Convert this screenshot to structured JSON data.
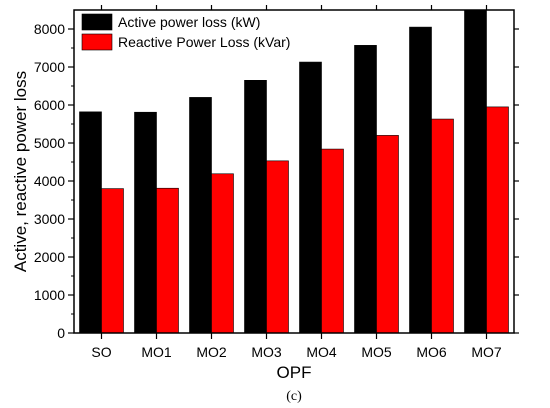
{
  "chart_data": {
    "type": "bar",
    "title": "",
    "xlabel": "OPF",
    "ylabel": "Active, reactive power loss",
    "categories": [
      "SO",
      "MO1",
      "MO2",
      "MO3",
      "MO4",
      "MO5",
      "MO6",
      "MO7"
    ],
    "series": [
      {
        "name": "Active power loss (kW)",
        "color": "#000000",
        "values": [
          5820,
          5810,
          6200,
          6650,
          7130,
          7570,
          8050,
          8480
        ]
      },
      {
        "name": "Reactive Power Loss (kVar)",
        "color": "#ff0000",
        "values": [
          3800,
          3810,
          4190,
          4530,
          4840,
          5200,
          5630,
          5950
        ]
      }
    ],
    "ylim": [
      0,
      8500
    ],
    "yticks": [
      0,
      1000,
      2000,
      3000,
      4000,
      5000,
      6000,
      7000,
      8000
    ],
    "grid": false,
    "legend_position": "top-left",
    "caption": "(c)"
  }
}
